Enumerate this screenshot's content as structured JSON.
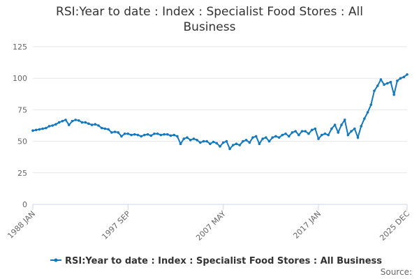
{
  "chart_data": {
    "type": "line",
    "title": "RSI:Year to date : Index : Specialist Food Stores : All Business",
    "source": "Source:",
    "categories": [
      "1988 JAN",
      null,
      null,
      null,
      null,
      null,
      null,
      null,
      null,
      null,
      null,
      null,
      null,
      null,
      null,
      null,
      null,
      null,
      null,
      null,
      null,
      null,
      null,
      null,
      null,
      null,
      null,
      null,
      null,
      "1997 SEP",
      null,
      null,
      null,
      null,
      null,
      null,
      null,
      null,
      null,
      null,
      null,
      null,
      null,
      null,
      null,
      null,
      null,
      null,
      null,
      null,
      null,
      null,
      null,
      null,
      null,
      null,
      null,
      null,
      "2007 MAY",
      null,
      null,
      null,
      null,
      null,
      null,
      null,
      null,
      null,
      null,
      null,
      null,
      null,
      null,
      null,
      null,
      null,
      null,
      null,
      null,
      null,
      null,
      null,
      null,
      null,
      null,
      null,
      null,
      "2017 JAN",
      null,
      null,
      null,
      null,
      null,
      null,
      null,
      null,
      null,
      null,
      null,
      null,
      null,
      null,
      null,
      null,
      null,
      null,
      null,
      null,
      null,
      null,
      null,
      null,
      null,
      null,
      "2025 DEC"
    ],
    "series": [
      {
        "name": "RSI:Year to date : Index : Specialist Food Stores : All Business",
        "color": "#1378bd",
        "values": [
          58.5,
          59,
          59.5,
          60,
          60.5,
          62,
          62.5,
          63.5,
          65,
          66,
          67,
          63,
          66,
          67,
          66.5,
          65,
          65,
          64,
          63,
          63.5,
          62.5,
          60.5,
          60,
          59.5,
          57,
          57.5,
          57,
          54,
          56,
          56,
          55,
          55.5,
          55,
          54,
          55,
          55.5,
          54.5,
          56,
          56,
          55,
          55.5,
          55.5,
          54.5,
          55,
          54,
          48,
          52,
          53,
          51,
          52,
          51,
          49,
          50,
          50,
          48,
          49.5,
          48.5,
          46,
          49,
          50,
          44,
          47,
          48,
          47,
          50,
          51,
          49,
          53,
          54,
          48,
          52,
          53,
          50,
          53,
          54,
          53,
          55,
          56,
          54,
          57,
          58,
          55,
          58,
          58,
          56,
          59,
          60,
          52,
          55,
          56,
          55,
          60,
          63,
          57,
          63,
          67,
          55,
          58,
          60,
          53,
          62,
          68,
          73,
          79,
          90,
          94,
          99,
          95,
          96,
          97,
          87,
          98,
          100,
          101,
          103
        ]
      }
    ],
    "ylim": [
      0,
      125
    ],
    "yticks": [
      0,
      25,
      50,
      75,
      100,
      125
    ],
    "grid": true
  }
}
